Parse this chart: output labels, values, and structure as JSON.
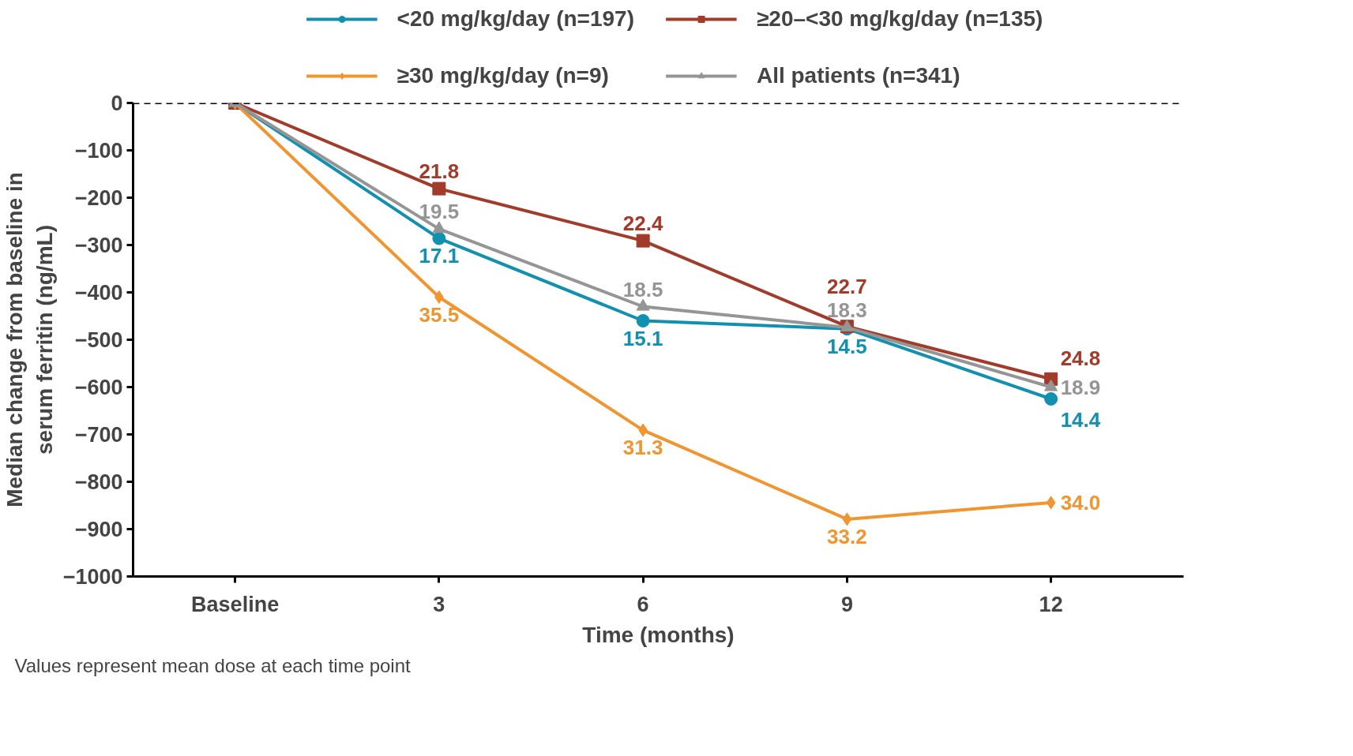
{
  "chart_data": {
    "type": "line",
    "xlabel": "Time (months)",
    "ylabel": "Median change from baseline in serum ferritin (ng/mL)",
    "categories": [
      "Baseline",
      "3",
      "6",
      "9",
      "12"
    ],
    "ylim": [
      -1000,
      0
    ],
    "series": [
      {
        "name": "<20 mg/kg/day (n=197)",
        "color": "#1190b0",
        "marker": "circle",
        "values": [
          0,
          -286,
          -460,
          -477,
          -625
        ]
      },
      {
        "name": "≥20–<30 mg/kg/day (n=135)",
        "color": "#a33b2b",
        "marker": "square",
        "values": [
          0,
          -181,
          -291,
          -472,
          -583
        ]
      },
      {
        "name": "≥30 mg/kg/day (n=9)",
        "color": "#f0952f",
        "marker": "diamond",
        "values": [
          0,
          -410,
          -691,
          -879,
          -844
        ]
      },
      {
        "name": "All patients (n=341)",
        "color": "#959595",
        "marker": "triangle",
        "values": [
          0,
          -266,
          -430,
          -474,
          -600
        ]
      }
    ],
    "yticks": [
      0,
      -100,
      -200,
      -300,
      -400,
      -500,
      -600,
      -700,
      -800,
      -900,
      -1000
    ],
    "ref_lines": [
      {
        "axis": "y",
        "value": 0,
        "color": "#000000",
        "line_style": "dashed"
      }
    ],
    "legend": "top",
    "grid": false,
    "annotations": [
      {
        "text": "17.1",
        "x": "3",
        "y": -286
      },
      {
        "text": "15.1",
        "x": "6",
        "y": -460
      },
      {
        "text": "14.5",
        "x": "9",
        "y": -477
      },
      {
        "text": "14.4",
        "x": "12",
        "y": -625
      },
      {
        "text": "21.8",
        "x": "3",
        "y": -181
      },
      {
        "text": "22.4",
        "x": "6",
        "y": -291
      },
      {
        "text": "22.7",
        "x": "9",
        "y": -472
      },
      {
        "text": "24.8",
        "x": "12",
        "y": -583
      },
      {
        "text": "35.5",
        "x": "3",
        "y": -410
      },
      {
        "text": "31.3",
        "x": "6",
        "y": -691
      },
      {
        "text": "33.2",
        "x": "9",
        "y": -879
      },
      {
        "text": "34.0",
        "x": "12",
        "y": -844
      },
      {
        "text": "19.5",
        "x": "3",
        "y": -266
      },
      {
        "text": "18.5",
        "x": "6",
        "y": -430
      },
      {
        "text": "18.3",
        "x": "9",
        "y": -474
      },
      {
        "text": "18.9",
        "x": "12",
        "y": -600
      },
      "Values represent mean dose at each time point"
    ]
  }
}
